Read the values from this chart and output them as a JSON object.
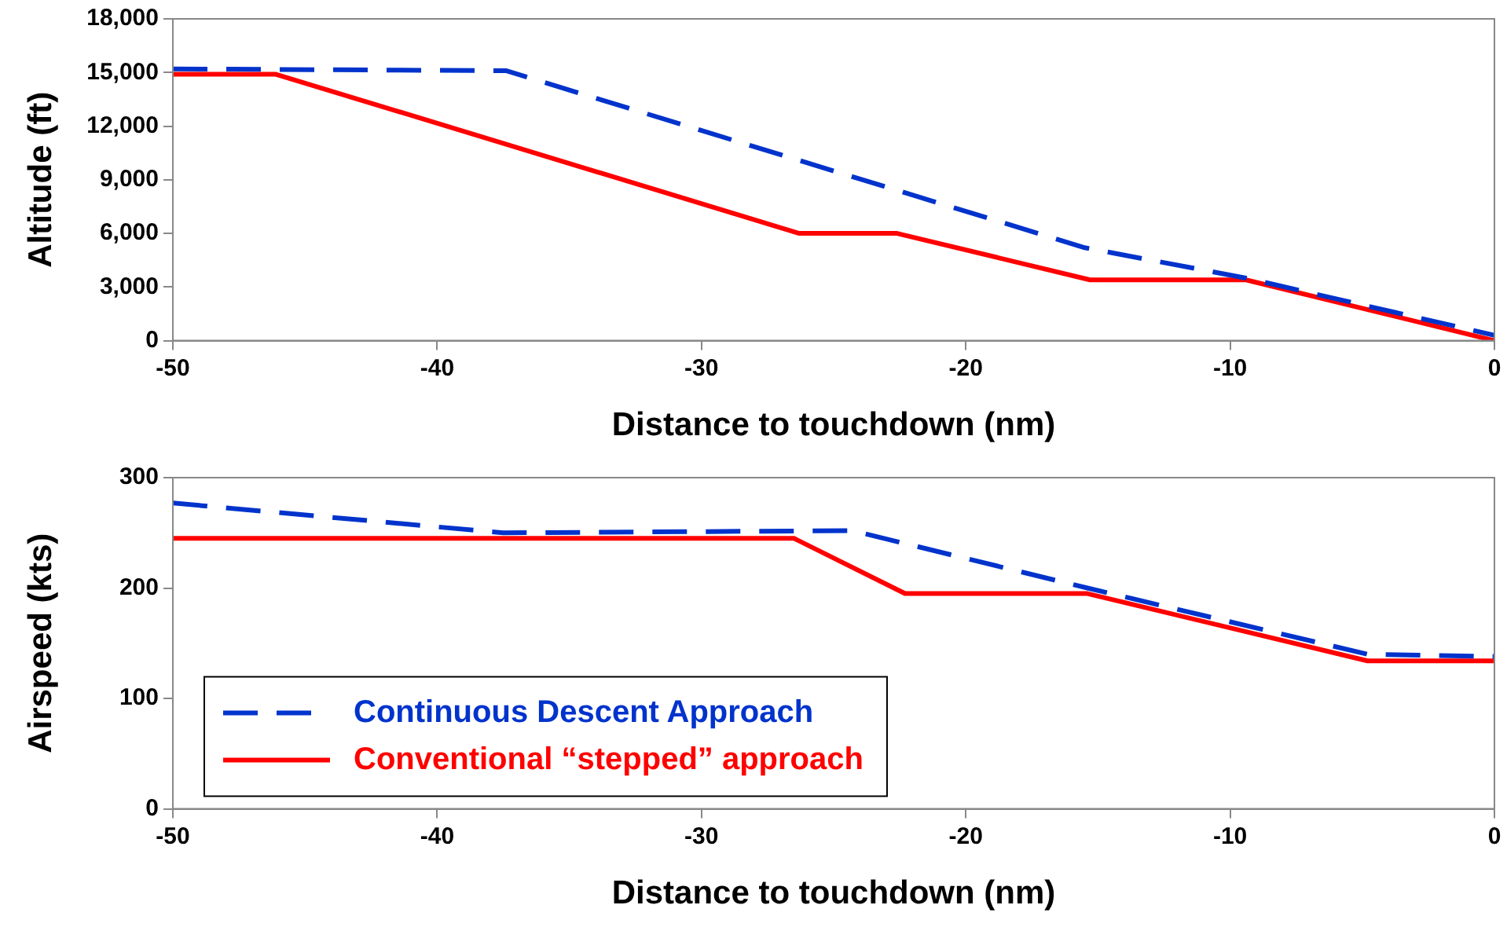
{
  "chart_data": [
    {
      "type": "line",
      "xlabel": "Distance to touchdown (nm)",
      "ylabel": "Altitude (ft)",
      "xlim": [
        -50,
        0
      ],
      "xticks": [
        -50,
        -40,
        -30,
        -20,
        -10,
        0
      ],
      "ylim": [
        0,
        18000
      ],
      "yticks": [
        {
          "value": 0,
          "label": "0"
        },
        {
          "value": 3000,
          "label": "3,000"
        },
        {
          "value": 6000,
          "label": "6,000"
        },
        {
          "value": 9000,
          "label": "9,000"
        },
        {
          "value": 12000,
          "label": "12,000"
        },
        {
          "value": 15000,
          "label": "15,000"
        },
        {
          "value": 18000,
          "label": "18,000"
        }
      ],
      "grid": false,
      "legend": false,
      "marker": "none",
      "series": [
        {
          "color": "#0033cc",
          "line_style": "dashed",
          "x": [
            -50,
            -37.4,
            -15.5,
            -9.4,
            0
          ],
          "values": [
            15200,
            15100,
            5200,
            3500,
            300
          ]
        },
        {
          "color": "#ff0000",
          "line_style": "solid",
          "x": [
            -50,
            -46.1,
            -26.3,
            -22.6,
            -15.3,
            -9.4,
            0
          ],
          "values": [
            14900,
            14900,
            6000,
            6000,
            3400,
            3400,
            0
          ]
        }
      ]
    },
    {
      "type": "line",
      "xlabel": "Distance to touchdown (nm)",
      "ylabel": "Airspeed (kts)",
      "xlim": [
        -50,
        0
      ],
      "xticks": [
        -50,
        -40,
        -30,
        -20,
        -10,
        0
      ],
      "ylim": [
        0,
        300
      ],
      "yticks": [
        0,
        100,
        200,
        300
      ],
      "grid": false,
      "legend": "bottom left",
      "marker": "none",
      "series": [
        {
          "name": "Continuous Descent Approach",
          "color": "#0033cc",
          "line_style": "dashed",
          "x": [
            -50,
            -37.5,
            -24.3,
            -15.4,
            -4.8,
            0
          ],
          "values": [
            277,
            250,
            252,
            200,
            140,
            138
          ]
        },
        {
          "name": "Conventional “stepped” approach",
          "color": "#ff0000",
          "line_style": "solid",
          "x": [
            -50,
            -26.5,
            -22.3,
            -15.4,
            -4.8,
            0
          ],
          "values": [
            245,
            245,
            195,
            195,
            134,
            134
          ]
        }
      ]
    }
  ]
}
